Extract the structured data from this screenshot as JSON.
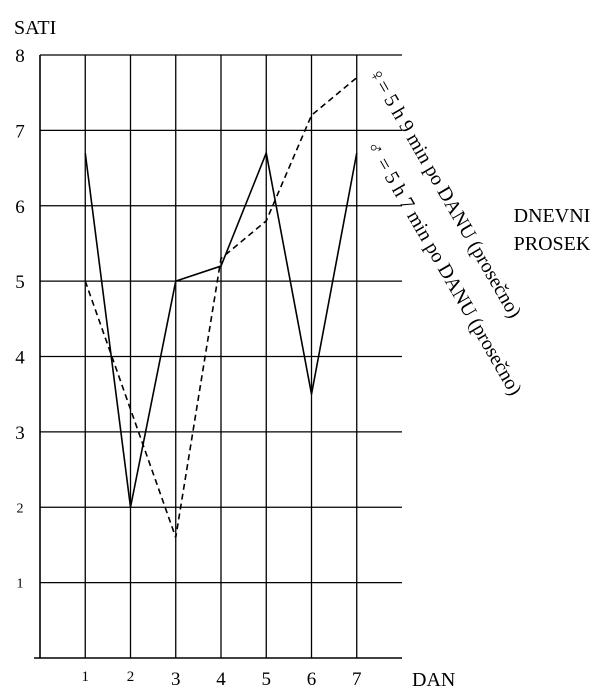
{
  "chart_data": {
    "type": "line",
    "ylabel": "SATI",
    "xlabel": "DAN",
    "x": [
      1,
      2,
      3,
      4,
      5,
      6,
      7
    ],
    "x_tick_labels": [
      "1",
      "2",
      "3",
      "4",
      "5",
      "6",
      "7"
    ],
    "y_tick_labels": [
      "1",
      "2",
      "3",
      "4",
      "5",
      "6",
      "7",
      "8"
    ],
    "ylim": [
      0,
      8
    ],
    "xlim": [
      0,
      8
    ],
    "grid": true,
    "series": [
      {
        "name": "♂",
        "line_style": "solid",
        "color": "#000000",
        "values": [
          6.7,
          2.0,
          5.0,
          5.2,
          6.7,
          3.5,
          6.7
        ]
      },
      {
        "name": "♀",
        "line_style": "dashed",
        "color": "#000000",
        "values": [
          5.0,
          3.3,
          1.6,
          5.3,
          5.8,
          7.2,
          7.7
        ]
      }
    ],
    "annotations": [
      {
        "text": "♀= 5 h 9 min po DANU (prosečno)"
      },
      {
        "text": "♂ = 5 h 7 min po DANU (prosečno)"
      }
    ],
    "side_label_lines": [
      "DNEVNI",
      "PROSEK"
    ]
  }
}
